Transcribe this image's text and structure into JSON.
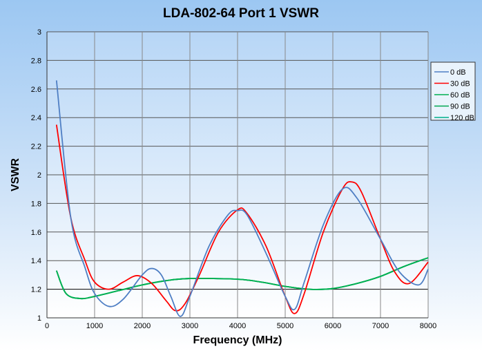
{
  "chart_data": {
    "type": "line",
    "title": "LDA-802-64 Port 1 VSWR",
    "xlabel": "Frequency (MHz)",
    "ylabel": "VSWR",
    "xlim": [
      0,
      8000
    ],
    "ylim": [
      1,
      3
    ],
    "xticks": [
      0,
      1000,
      2000,
      3000,
      4000,
      5000,
      6000,
      7000,
      8000
    ],
    "yticks": [
      1,
      1.2,
      1.4,
      1.6,
      1.8,
      2,
      2.2,
      2.4,
      2.6,
      2.8,
      3
    ],
    "ytick_labels": [
      "1",
      "1.2",
      "1.4",
      "1.6",
      "1.8",
      "2",
      "2.2",
      "2.4",
      "2.6",
      "2.8",
      "3"
    ],
    "grid": true,
    "legend_position": "right",
    "series": [
      {
        "name": "0  dB",
        "color": "#4f7fc4",
        "x": [
          200,
          500,
          800,
          1000,
          1300,
          1600,
          2000,
          2200,
          2400,
          2600,
          2800,
          3000,
          3400,
          3800,
          4000,
          4200,
          4600,
          5000,
          5200,
          5400,
          5800,
          6200,
          6500,
          7000,
          7400,
          7800,
          8000
        ],
        "y": [
          2.66,
          1.7,
          1.35,
          1.17,
          1.08,
          1.13,
          1.3,
          1.345,
          1.3,
          1.15,
          1.01,
          1.15,
          1.5,
          1.72,
          1.75,
          1.72,
          1.45,
          1.15,
          1.06,
          1.25,
          1.65,
          1.9,
          1.84,
          1.55,
          1.32,
          1.23,
          1.34
        ]
      },
      {
        "name": "30 dB",
        "color": "#ff0000",
        "x": [
          200,
          500,
          800,
          1000,
          1300,
          1600,
          1900,
          2200,
          2500,
          2700,
          2900,
          3200,
          3600,
          4000,
          4200,
          4600,
          5000,
          5200,
          5400,
          5800,
          6200,
          6400,
          6600,
          7000,
          7300,
          7600,
          8000
        ],
        "y": [
          2.35,
          1.7,
          1.4,
          1.25,
          1.2,
          1.25,
          1.295,
          1.24,
          1.12,
          1.05,
          1.1,
          1.3,
          1.6,
          1.755,
          1.73,
          1.5,
          1.15,
          1.03,
          1.17,
          1.6,
          1.9,
          1.95,
          1.88,
          1.55,
          1.32,
          1.24,
          1.39
        ]
      },
      {
        "name": "60 dB",
        "color": "#00b050",
        "x": [
          200,
          400,
          700,
          1000,
          1500,
          2000,
          2500,
          3000,
          4000,
          4500,
          5000,
          5500,
          6000,
          6500,
          7000,
          7500,
          8000
        ],
        "y": [
          1.33,
          1.17,
          1.135,
          1.15,
          1.19,
          1.23,
          1.26,
          1.275,
          1.27,
          1.25,
          1.22,
          1.2,
          1.205,
          1.24,
          1.29,
          1.36,
          1.42
        ]
      },
      {
        "name": "90 dB",
        "color": "#00a651",
        "x": [
          200,
          400,
          700,
          1000,
          1500,
          2000,
          2500,
          3000,
          4000,
          4500,
          5000,
          5500,
          6000,
          6500,
          7000,
          7500,
          8000
        ],
        "y": [
          1.33,
          1.17,
          1.135,
          1.15,
          1.19,
          1.23,
          1.26,
          1.275,
          1.27,
          1.25,
          1.22,
          1.2,
          1.205,
          1.24,
          1.29,
          1.36,
          1.42
        ]
      },
      {
        "name": "120 dB",
        "color": "#00b08a",
        "x": [
          200,
          400,
          700,
          1000,
          1500,
          2000,
          2500,
          3000,
          4000,
          4500,
          5000,
          5500,
          6000,
          6500,
          7000,
          7500,
          8000
        ],
        "y": [
          1.33,
          1.17,
          1.135,
          1.15,
          1.19,
          1.23,
          1.26,
          1.275,
          1.27,
          1.25,
          1.22,
          1.2,
          1.205,
          1.24,
          1.29,
          1.36,
          1.42
        ]
      }
    ]
  }
}
